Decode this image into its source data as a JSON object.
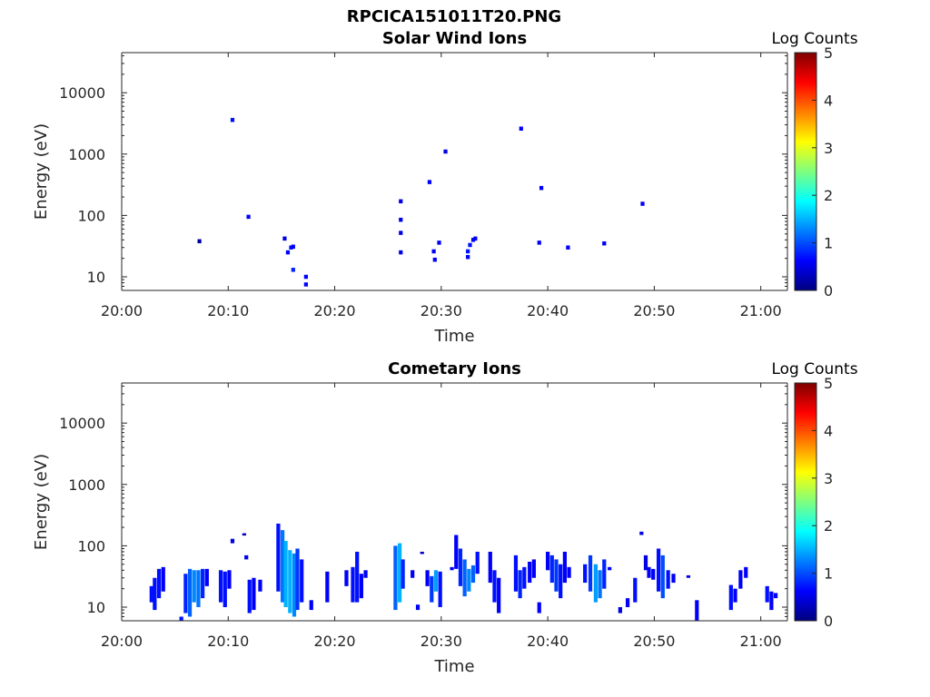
{
  "figure": {
    "title": "RPCICA151011T20.PNG"
  },
  "colormap": {
    "name": "jet",
    "stops": [
      "#00007f",
      "#0000ff",
      "#007fff",
      "#00ffff",
      "#7fff7f",
      "#ffff00",
      "#ff7f00",
      "#ff0000",
      "#7f0000"
    ],
    "label": "Log Counts",
    "range": [
      0,
      5
    ],
    "ticks": [
      "0",
      "1",
      "2",
      "3",
      "4",
      "5"
    ]
  },
  "chart_data": [
    {
      "type": "heatmap",
      "title": "Solar Wind Ions",
      "xlabel": "Time",
      "ylabel": "Energy (eV)",
      "x_unit": "minutes after 20:00",
      "xlim": [
        0,
        62.5
      ],
      "ylim": [
        6,
        45000
      ],
      "y_scale": "log",
      "xticks": [
        "20:00",
        "20:10",
        "20:20",
        "20:30",
        "20:40",
        "20:50",
        "21:00"
      ],
      "yticks": [
        "10",
        "100",
        "1000",
        "10000"
      ],
      "cells": [
        [
          7.3,
          38,
          0.2
        ],
        [
          10.4,
          3600,
          0.7
        ],
        [
          11.9,
          95,
          0.6
        ],
        [
          15.3,
          42,
          0.5
        ],
        [
          15.6,
          25,
          0.6
        ],
        [
          15.9,
          30,
          0.7
        ],
        [
          16.1,
          13,
          0.8
        ],
        [
          16.1,
          31,
          0.6
        ],
        [
          17.3,
          10,
          0.6
        ],
        [
          17.3,
          7.5,
          0.6
        ],
        [
          26.2,
          170,
          0.5
        ],
        [
          26.2,
          85,
          0.5
        ],
        [
          26.2,
          52,
          0.5
        ],
        [
          26.2,
          25,
          0.5
        ],
        [
          28.9,
          350,
          0.6
        ],
        [
          29.3,
          26,
          0.6
        ],
        [
          29.4,
          19,
          0.6
        ],
        [
          29.8,
          36,
          0.6
        ],
        [
          30.4,
          1100,
          0.5
        ],
        [
          32.5,
          21,
          0.6
        ],
        [
          32.5,
          26,
          0.7
        ],
        [
          32.7,
          33,
          0.7
        ],
        [
          33.0,
          40,
          0.6
        ],
        [
          33.2,
          42,
          0.6
        ],
        [
          37.5,
          2600,
          0.6
        ],
        [
          39.2,
          36,
          0.6
        ],
        [
          39.4,
          280,
          0.6
        ],
        [
          41.9,
          30,
          0.6
        ],
        [
          45.3,
          35,
          0.6
        ],
        [
          48.9,
          155,
          0.6
        ]
      ]
    },
    {
      "type": "heatmap",
      "title": "Cometary Ions",
      "xlabel": "Time",
      "ylabel": "Energy (eV)",
      "x_unit": "minutes after 20:00",
      "xlim": [
        0,
        62.5
      ],
      "ylim": [
        6,
        45000
      ],
      "y_scale": "log",
      "xticks": [
        "20:00",
        "20:10",
        "20:20",
        "20:30",
        "20:40",
        "20:50",
        "21:00"
      ],
      "yticks": [
        "10",
        "100",
        "1000",
        "10000"
      ],
      "columns": [
        [
          2.8,
          12,
          22,
          0.7
        ],
        [
          3.1,
          9,
          30,
          0.7
        ],
        [
          3.5,
          14,
          42,
          0.7
        ],
        [
          3.9,
          18,
          45,
          0.6
        ],
        [
          6.0,
          8,
          35,
          0.8
        ],
        [
          6.4,
          7,
          42,
          1.1
        ],
        [
          6.8,
          12,
          40,
          1.3
        ],
        [
          7.2,
          10,
          40,
          1.2
        ],
        [
          7.6,
          14,
          42,
          0.8
        ],
        [
          8.0,
          22,
          42,
          0.6
        ],
        [
          9.3,
          12,
          40,
          0.7
        ],
        [
          9.7,
          10,
          38,
          0.7
        ],
        [
          10.1,
          20,
          40,
          0.6
        ],
        [
          10.4,
          110,
          130,
          0.5
        ],
        [
          12.0,
          8,
          28,
          0.7
        ],
        [
          12.4,
          9,
          30,
          0.6
        ],
        [
          13.0,
          18,
          28,
          0.6
        ],
        [
          11.7,
          60,
          70,
          0.5
        ],
        [
          11.5,
          150,
          160,
          0.4
        ],
        [
          14.7,
          18,
          230,
          0.7
        ],
        [
          15.1,
          12,
          180,
          1.2
        ],
        [
          15.4,
          10,
          120,
          1.5
        ],
        [
          15.8,
          8,
          85,
          1.5
        ],
        [
          16.2,
          7,
          75,
          1.3
        ],
        [
          16.5,
          9,
          90,
          0.9
        ],
        [
          16.9,
          12,
          60,
          0.7
        ],
        [
          19.3,
          12,
          38,
          0.6
        ],
        [
          21.1,
          22,
          40,
          0.6
        ],
        [
          21.7,
          12,
          45,
          0.7
        ],
        [
          22.1,
          12,
          80,
          0.7
        ],
        [
          22.5,
          14,
          35,
          0.6
        ],
        [
          22.9,
          30,
          40,
          0.6
        ],
        [
          25.7,
          9,
          100,
          1.1
        ],
        [
          26.1,
          12,
          110,
          1.5
        ],
        [
          26.4,
          20,
          60,
          0.8
        ],
        [
          27.3,
          30,
          40,
          0.6
        ],
        [
          28.2,
          75,
          80,
          0.4
        ],
        [
          28.7,
          22,
          40,
          0.6
        ],
        [
          29.1,
          12,
          32,
          0.9
        ],
        [
          29.5,
          18,
          40,
          1.4
        ],
        [
          29.9,
          10,
          38,
          0.7
        ],
        [
          31.0,
          40,
          45,
          0.6
        ],
        [
          31.4,
          42,
          150,
          0.6
        ],
        [
          31.8,
          22,
          90,
          0.8
        ],
        [
          32.2,
          15,
          60,
          1.1
        ],
        [
          32.6,
          18,
          42,
          1.3
        ],
        [
          33.0,
          25,
          48,
          1.1
        ],
        [
          33.4,
          35,
          80,
          0.7
        ],
        [
          34.6,
          25,
          80,
          0.6
        ],
        [
          35.0,
          12,
          40,
          0.7
        ],
        [
          35.4,
          8,
          30,
          0.6
        ],
        [
          37.0,
          18,
          70,
          0.7
        ],
        [
          37.4,
          14,
          40,
          0.8
        ],
        [
          37.8,
          20,
          45,
          0.7
        ],
        [
          38.3,
          25,
          55,
          0.6
        ],
        [
          38.7,
          30,
          60,
          0.6
        ],
        [
          40.0,
          40,
          80,
          0.6
        ],
        [
          40.4,
          25,
          70,
          0.8
        ],
        [
          40.8,
          18,
          60,
          0.9
        ],
        [
          41.2,
          14,
          50,
          0.7
        ],
        [
          41.6,
          25,
          80,
          0.6
        ],
        [
          42.0,
          30,
          45,
          0.6
        ],
        [
          43.5,
          25,
          50,
          0.7
        ],
        [
          44.0,
          18,
          70,
          0.9
        ],
        [
          44.5,
          12,
          50,
          1.4
        ],
        [
          44.9,
          14,
          40,
          1.2
        ],
        [
          45.3,
          20,
          60,
          0.8
        ],
        [
          45.8,
          40,
          45,
          0.6
        ],
        [
          47.5,
          10,
          14,
          0.6
        ],
        [
          48.2,
          12,
          30,
          0.7
        ],
        [
          48.8,
          150,
          170,
          0.5
        ],
        [
          49.2,
          40,
          70,
          0.5
        ],
        [
          49.5,
          30,
          45,
          0.6
        ],
        [
          49.9,
          28,
          42,
          0.6
        ],
        [
          50.4,
          18,
          90,
          0.7
        ],
        [
          50.8,
          14,
          70,
          1.0
        ],
        [
          51.3,
          20,
          40,
          0.7
        ],
        [
          51.8,
          25,
          35,
          0.6
        ],
        [
          53.2,
          30,
          33,
          0.5
        ],
        [
          54.0,
          6,
          13,
          0.6
        ],
        [
          57.2,
          9,
          23,
          0.7
        ],
        [
          57.6,
          12,
          20,
          0.6
        ],
        [
          58.1,
          20,
          40,
          0.6
        ],
        [
          58.6,
          30,
          45,
          0.6
        ],
        [
          60.6,
          12,
          22,
          0.7
        ],
        [
          61.0,
          9,
          18,
          0.6
        ],
        [
          61.4,
          14,
          17,
          0.6
        ],
        [
          5.6,
          6,
          7,
          0.7
        ],
        [
          17.8,
          9,
          13,
          0.6
        ],
        [
          27.8,
          9,
          11,
          0.6
        ],
        [
          39.2,
          8,
          12,
          0.6
        ],
        [
          46.8,
          8,
          10,
          0.5
        ]
      ]
    }
  ]
}
